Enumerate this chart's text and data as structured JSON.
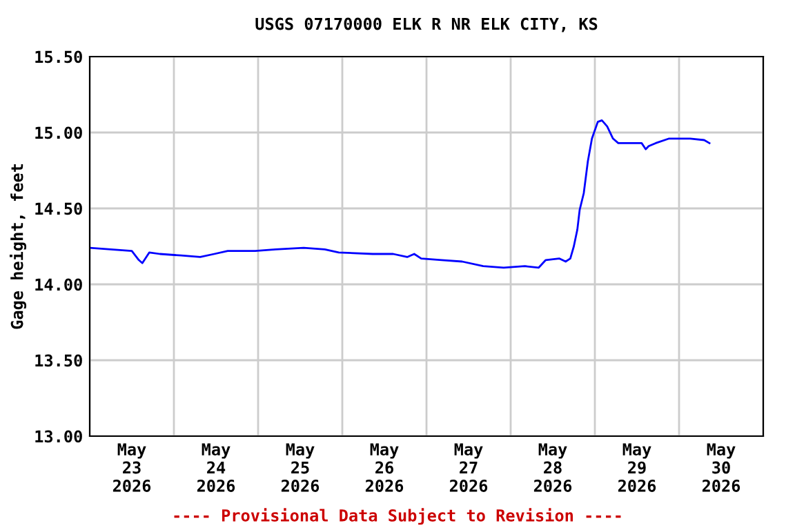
{
  "chart_data": {
    "type": "line",
    "title": "USGS 07170000 ELK R NR ELK CITY, KS",
    "ylabel": "Gage height, feet",
    "annotations": [
      "---- Provisional Data Subject to Revision ----"
    ],
    "x": [
      "2026-05-23T00:00",
      "2026-05-23T06:00",
      "2026-05-23T12:00",
      "2026-05-23T14:00",
      "2026-05-23T15:00",
      "2026-05-23T17:00",
      "2026-05-23T20:00",
      "2026-05-24T02:00",
      "2026-05-24T07:30",
      "2026-05-24T11:30",
      "2026-05-24T15:20",
      "2026-05-24T23:10",
      "2026-05-25T05:00",
      "2026-05-25T13:00",
      "2026-05-25T19:00",
      "2026-05-25T23:00",
      "2026-05-26T08:40",
      "2026-05-26T14:30",
      "2026-05-26T18:30",
      "2026-05-26T20:30",
      "2026-05-26T22:30",
      "2026-05-27T04:20",
      "2026-05-27T10:10",
      "2026-05-27T16:10",
      "2026-05-27T22:00",
      "2026-05-28T04:00",
      "2026-05-28T08:00",
      "2026-05-28T10:00",
      "2026-05-28T13:50",
      "2026-05-28T15:40",
      "2026-05-28T17:00",
      "2026-05-28T18:00",
      "2026-05-28T19:00",
      "2026-05-28T19:40",
      "2026-05-28T20:50",
      "2026-05-28T22:00",
      "2026-05-28T23:10",
      "2026-05-29T00:50",
      "2026-05-29T02:00",
      "2026-05-29T03:30",
      "2026-05-29T05:10",
      "2026-05-29T06:40",
      "2026-05-29T11:20",
      "2026-05-29T13:20",
      "2026-05-29T14:30",
      "2026-05-29T15:20",
      "2026-05-29T17:20",
      "2026-05-29T21:10",
      "2026-05-29T23:10",
      "2026-05-30T03:10",
      "2026-05-30T07:10",
      "2026-05-30T08:40"
    ],
    "series": [
      {
        "color": "#0000ff",
        "values": [
          14.24,
          14.23,
          14.22,
          14.16,
          14.14,
          14.21,
          14.2,
          14.19,
          14.18,
          14.2,
          14.22,
          14.22,
          14.23,
          14.24,
          14.23,
          14.21,
          14.2,
          14.2,
          14.18,
          14.2,
          14.17,
          14.16,
          14.15,
          14.12,
          14.11,
          14.12,
          14.11,
          14.16,
          14.17,
          14.15,
          14.17,
          14.25,
          14.36,
          14.49,
          14.6,
          14.81,
          14.96,
          15.07,
          15.08,
          15.04,
          14.96,
          14.93,
          14.93,
          14.93,
          14.89,
          14.91,
          14.93,
          14.96,
          14.96,
          14.96,
          14.95,
          14.93
        ]
      }
    ],
    "xlim": [
      "2026-05-23T00:00",
      "2026-05-31T00:00"
    ],
    "xticks": [
      {
        "value": "2026-05-23T00:00",
        "label": null
      },
      {
        "value": "2026-05-24T00:00",
        "label": null
      },
      {
        "value": "2026-05-25T00:00",
        "label": null
      },
      {
        "value": "2026-05-26T00:00",
        "label": null
      },
      {
        "value": "2026-05-27T00:00",
        "label": null
      },
      {
        "value": "2026-05-28T00:00",
        "label": null
      },
      {
        "value": "2026-05-29T00:00",
        "label": null
      },
      {
        "value": "2026-05-30T00:00",
        "label": null
      },
      {
        "value": "2026-05-31T00:00",
        "label": null
      },
      {
        "value": "2026-05-23T12:00",
        "label": "May\n23\n2026"
      },
      {
        "value": "2026-05-24T12:00",
        "label": "May\n24\n2026"
      },
      {
        "value": "2026-05-25T12:00",
        "label": "May\n25\n2026"
      },
      {
        "value": "2026-05-26T12:00",
        "label": "May\n26\n2026"
      },
      {
        "value": "2026-05-27T12:00",
        "label": "May\n27\n2026"
      },
      {
        "value": "2026-05-28T12:00",
        "label": "May\n28\n2026"
      },
      {
        "value": "2026-05-29T12:00",
        "label": "May\n29\n2026"
      },
      {
        "value": "2026-05-30T12:00",
        "label": "May\n30\n2026"
      }
    ],
    "ylim": [
      13.0,
      15.5
    ],
    "yticks": [
      {
        "value": 13.0,
        "label": "13.00"
      },
      {
        "value": 13.5,
        "label": "13.50"
      },
      {
        "value": 14.0,
        "label": "14.00"
      },
      {
        "value": 14.5,
        "label": "14.50"
      },
      {
        "value": 15.0,
        "label": "15.00"
      },
      {
        "value": 15.5,
        "label": "15.50"
      }
    ],
    "grid": true,
    "legend": false
  }
}
